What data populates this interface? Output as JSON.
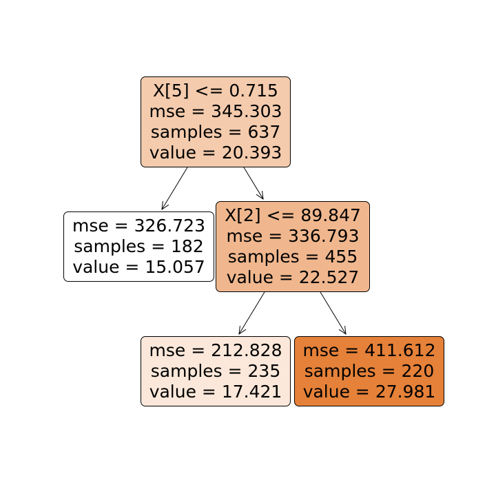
{
  "nodes": [
    {
      "id": "n0",
      "lines": [
        "X[5] <= 0.715",
        "mse = 345.303",
        "samples = 637",
        "value = 20.393"
      ],
      "fill": "#f4cbad"
    },
    {
      "id": "n1",
      "lines": [
        "mse = 326.723",
        "samples = 182",
        "value = 15.057"
      ],
      "fill": "#ffffff"
    },
    {
      "id": "n2",
      "lines": [
        "X[2] <= 89.847",
        "mse = 336.793",
        "samples = 455",
        "value = 22.527"
      ],
      "fill": "#f0b78e"
    },
    {
      "id": "n3",
      "lines": [
        "mse = 212.828",
        "samples = 235",
        "value = 17.421"
      ],
      "fill": "#fbe8da"
    },
    {
      "id": "n4",
      "lines": [
        "mse = 411.612",
        "samples = 220",
        "value = 27.981"
      ],
      "fill": "#e58139"
    }
  ],
  "edges": [
    {
      "from": "n0",
      "to": "n1"
    },
    {
      "from": "n0",
      "to": "n2"
    },
    {
      "from": "n2",
      "to": "n3"
    },
    {
      "from": "n2",
      "to": "n4"
    }
  ]
}
